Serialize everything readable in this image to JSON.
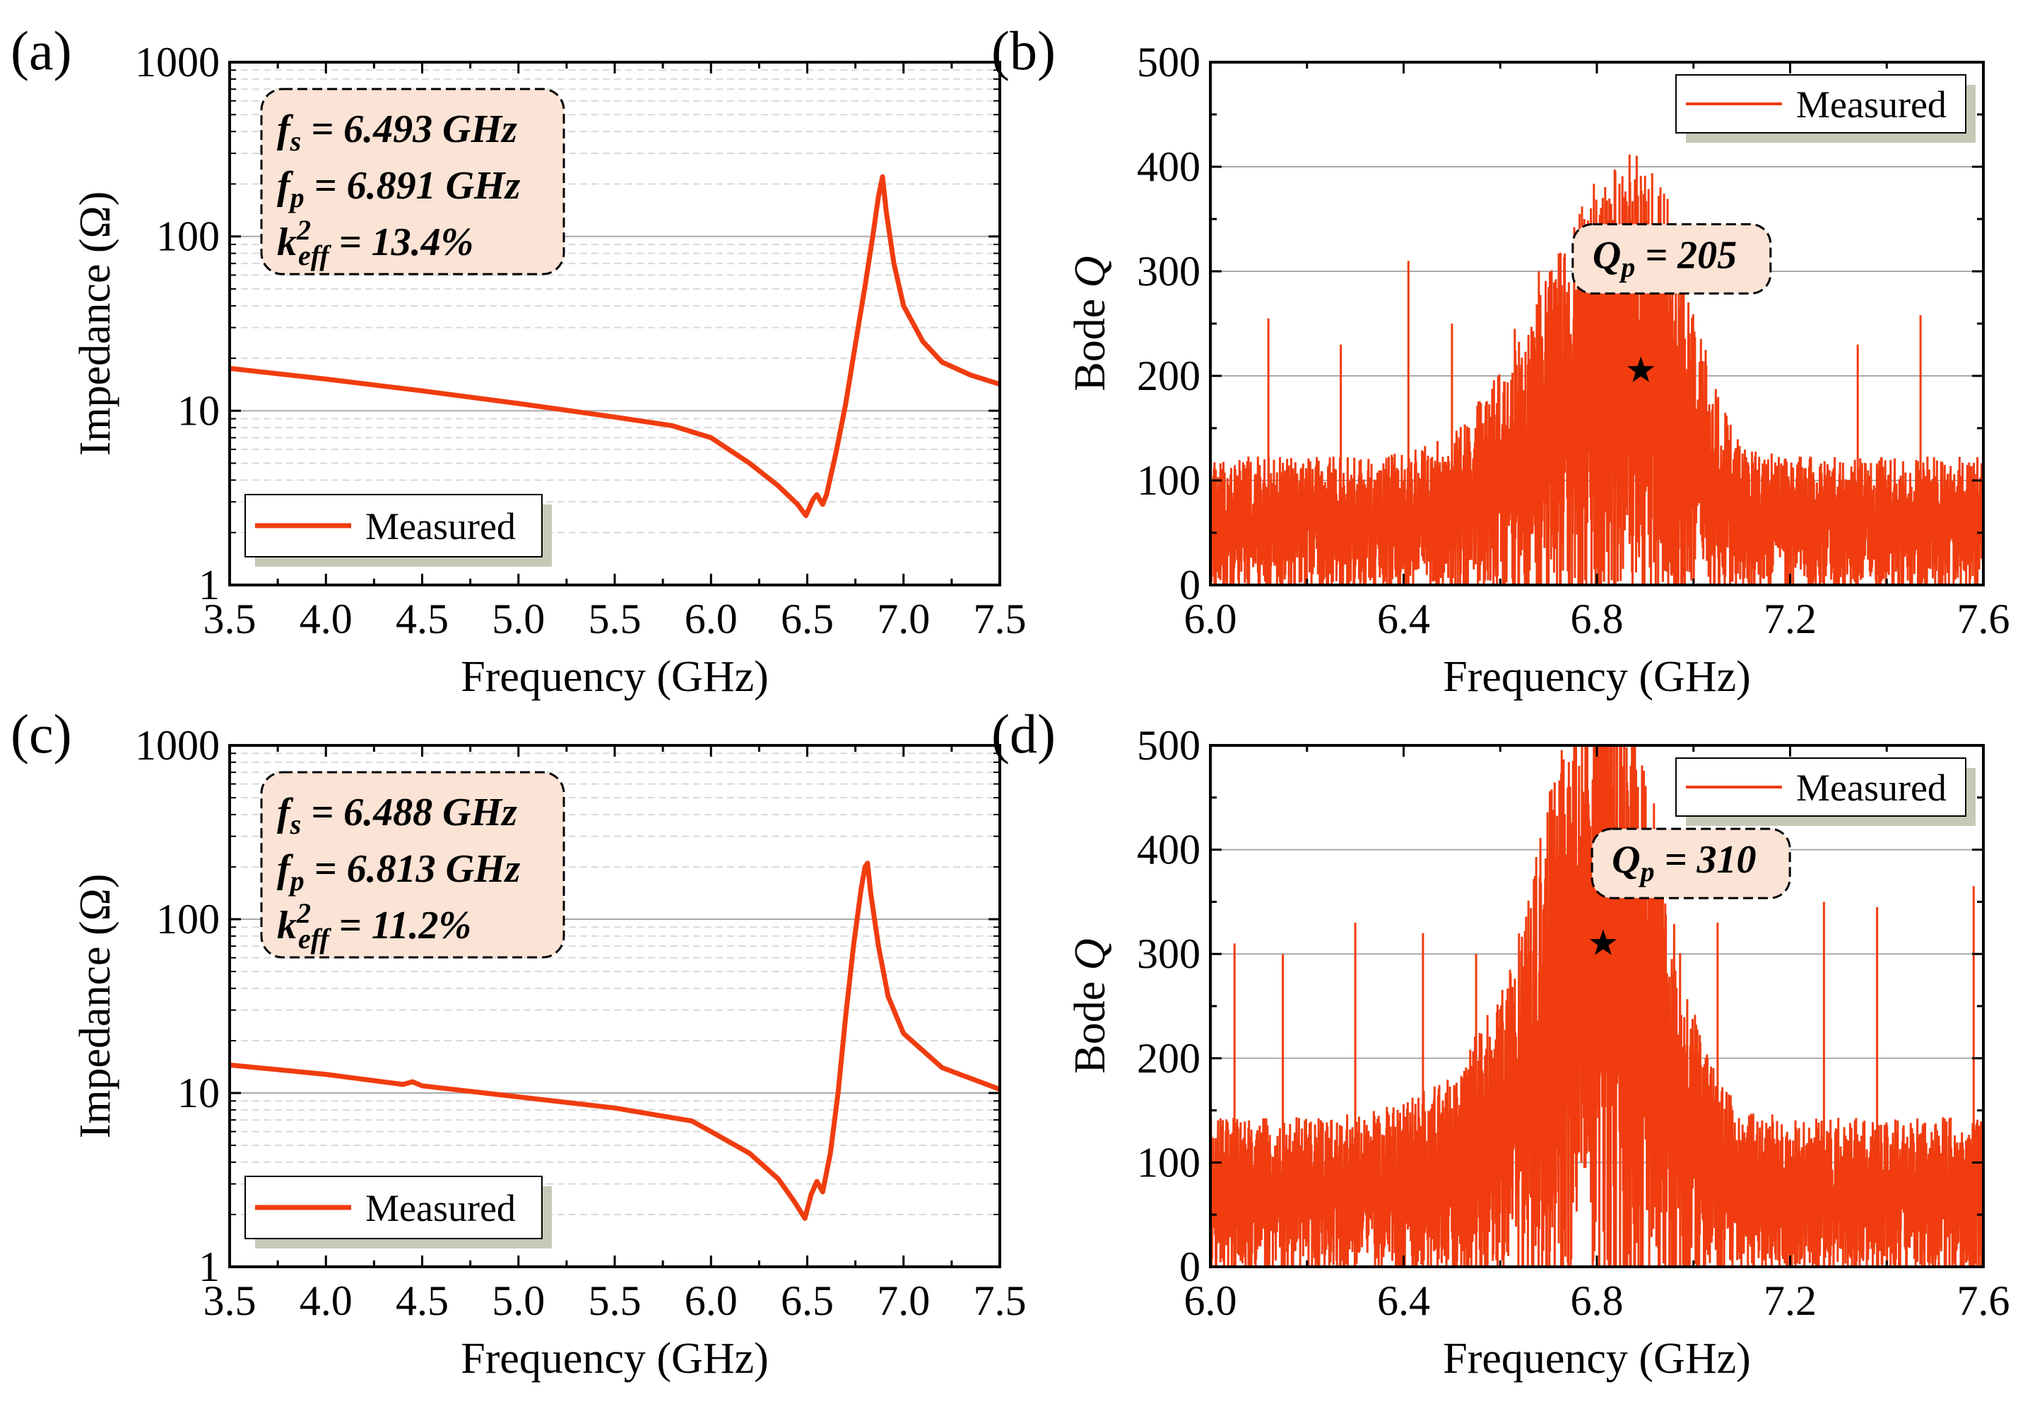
{
  "colors": {
    "series": "#f03c0f",
    "annotation_fill": "#fbe3d5",
    "grid_major": "#a9a9a9",
    "grid_minor": "#d9d9d9",
    "legend_shadow": "#c8c8b8"
  },
  "chart_data": [
    {
      "id": "a",
      "type": "line",
      "panel_label": "(a)",
      "xlabel": "Frequency (GHz)",
      "ylabel": "Impedance (Ω)",
      "xlim": [
        3.5,
        7.5
      ],
      "ylim": [
        1,
        1000
      ],
      "yscale": "log",
      "xticks": [
        "3.5",
        "4.0",
        "4.5",
        "5.0",
        "5.5",
        "6.0",
        "6.5",
        "7.0",
        "7.5"
      ],
      "yticks": [
        "1",
        "10",
        "100",
        "1000"
      ],
      "grid": true,
      "legend": {
        "position": "bottom-left",
        "entries": [
          "Measured"
        ]
      },
      "annotation": {
        "fs_prefix": "f",
        "fs_sub": "s",
        "fs_value": " = 6.493 GHz",
        "fp_prefix": "f",
        "fp_sub": "p",
        "fp_value": " = 6.891 GHz",
        "k_prefix": "k",
        "k_sup": "2",
        "k_sub": "eff",
        "k_value": " = 13.4%"
      },
      "series": [
        {
          "name": "Measured",
          "x": [
            3.5,
            4.0,
            4.5,
            5.0,
            5.5,
            5.8,
            6.0,
            6.2,
            6.35,
            6.45,
            6.493,
            6.53,
            6.55,
            6.58,
            6.6,
            6.65,
            6.7,
            6.75,
            6.8,
            6.84,
            6.87,
            6.891,
            6.91,
            6.95,
            7.0,
            7.1,
            7.2,
            7.35,
            7.5
          ],
          "y": [
            17.5,
            15.2,
            13.0,
            11.0,
            9.2,
            8.2,
            7.0,
            5.0,
            3.7,
            2.9,
            2.5,
            3.1,
            3.3,
            2.9,
            3.3,
            5.8,
            11.0,
            24.0,
            52.0,
            100.0,
            170.0,
            220.0,
            140.0,
            70.0,
            40.0,
            25.0,
            19.0,
            16.0,
            14.2
          ]
        }
      ]
    },
    {
      "id": "b",
      "type": "line",
      "panel_label": "(b)",
      "xlabel": "Frequency (GHz)",
      "ylabel_prefix": "Bode ",
      "ylabel_symbol": "Q",
      "xlim": [
        6.0,
        7.6
      ],
      "ylim": [
        0,
        500
      ],
      "xticks": [
        "6.0",
        "6.4",
        "6.8",
        "7.2",
        "7.6"
      ],
      "yticks": [
        "0",
        "100",
        "200",
        "300",
        "400",
        "500"
      ],
      "grid": true,
      "legend": {
        "position": "top-right",
        "entries": [
          "Measured"
        ]
      },
      "annotation": {
        "q_prefix": "Q",
        "q_sub": "p",
        "q_value": " = 205"
      },
      "peak_marker": {
        "x": 6.891,
        "y": 205
      },
      "series": [
        {
          "name": "Measured",
          "style": "noisy",
          "envelope_x": [
            6.0,
            6.1,
            6.2,
            6.3,
            6.4,
            6.5,
            6.6,
            6.7,
            6.75,
            6.8,
            6.85,
            6.891,
            6.95,
            7.0,
            7.05,
            7.1,
            7.2,
            7.3,
            7.4,
            7.5,
            7.6
          ],
          "envelope_y": [
            60,
            60,
            60,
            60,
            62,
            70,
            100,
            145,
            170,
            190,
            205,
            205,
            180,
            130,
            90,
            65,
            60,
            60,
            60,
            60,
            60
          ],
          "spikes": [
            [
              6.12,
              255
            ],
            [
              6.41,
              310
            ],
            [
              6.5,
              250
            ],
            [
              6.63,
              245
            ],
            [
              6.68,
              300
            ],
            [
              6.7,
              280
            ],
            [
              6.77,
              260
            ],
            [
              7.47,
              258
            ],
            [
              6.27,
              230
            ],
            [
              7.34,
              230
            ]
          ]
        }
      ]
    },
    {
      "id": "c",
      "type": "line",
      "panel_label": "(c)",
      "xlabel": "Frequency (GHz)",
      "ylabel": "Impedance (Ω)",
      "xlim": [
        3.5,
        7.5
      ],
      "ylim": [
        1,
        1000
      ],
      "yscale": "log",
      "xticks": [
        "3.5",
        "4.0",
        "4.5",
        "5.0",
        "5.5",
        "6.0",
        "6.5",
        "7.0",
        "7.5"
      ],
      "yticks": [
        "1",
        "10",
        "100",
        "1000"
      ],
      "grid": true,
      "legend": {
        "position": "bottom-left",
        "entries": [
          "Measured"
        ]
      },
      "annotation": {
        "fs_prefix": "f",
        "fs_sub": "s",
        "fs_value": " = 6.488 GHz",
        "fp_prefix": "f",
        "fp_sub": "p",
        "fp_value": " = 6.813 GHz",
        "k_prefix": "k",
        "k_sup": "2",
        "k_sub": "eff",
        "k_value": " = 11.2%"
      },
      "series": [
        {
          "name": "Measured",
          "x": [
            3.5,
            4.0,
            4.4,
            4.45,
            4.5,
            5.0,
            5.5,
            5.9,
            6.0,
            6.2,
            6.35,
            6.43,
            6.488,
            6.52,
            6.55,
            6.58,
            6.62,
            6.66,
            6.7,
            6.74,
            6.78,
            6.8,
            6.813,
            6.83,
            6.87,
            6.92,
            7.0,
            7.2,
            7.5
          ],
          "y": [
            14.5,
            12.8,
            11.2,
            11.6,
            11.0,
            9.5,
            8.2,
            6.9,
            6.0,
            4.5,
            3.2,
            2.4,
            1.9,
            2.6,
            3.1,
            2.7,
            4.5,
            10.0,
            28.0,
            70.0,
            150.0,
            200.0,
            210.0,
            140.0,
            70.0,
            36.0,
            22.0,
            14.0,
            10.5
          ]
        }
      ]
    },
    {
      "id": "d",
      "type": "line",
      "panel_label": "(d)",
      "xlabel": "Frequency (GHz)",
      "ylabel_prefix": "Bode ",
      "ylabel_symbol": "Q",
      "xlim": [
        6.0,
        7.6
      ],
      "ylim": [
        0,
        500
      ],
      "xticks": [
        "6.0",
        "6.4",
        "6.8",
        "7.2",
        "7.6"
      ],
      "yticks": [
        "0",
        "100",
        "200",
        "300",
        "400",
        "500"
      ],
      "grid": true,
      "legend": {
        "position": "top-right",
        "entries": [
          "Measured"
        ]
      },
      "annotation": {
        "q_prefix": "Q",
        "q_sub": "p",
        "q_value": " = 310"
      },
      "peak_marker": {
        "x": 6.813,
        "y": 310
      },
      "series": [
        {
          "name": "Measured",
          "style": "noisy",
          "envelope_x": [
            6.0,
            6.1,
            6.2,
            6.3,
            6.4,
            6.5,
            6.6,
            6.65,
            6.7,
            6.75,
            6.8,
            6.813,
            6.85,
            6.9,
            6.95,
            7.0,
            7.05,
            7.1,
            7.2,
            7.3,
            7.4,
            7.5,
            7.6
          ],
          "envelope_y": [
            70,
            70,
            70,
            72,
            78,
            90,
            130,
            170,
            220,
            270,
            305,
            310,
            290,
            240,
            180,
            120,
            90,
            75,
            70,
            70,
            70,
            70,
            70
          ],
          "spikes": [
            [
              6.05,
              310
            ],
            [
              6.15,
              300
            ],
            [
              6.3,
              330
            ],
            [
              6.44,
              320
            ],
            [
              6.55,
              300
            ],
            [
              6.93,
              370
            ],
            [
              7.05,
              330
            ],
            [
              7.27,
              350
            ],
            [
              7.38,
              345
            ],
            [
              7.58,
              365
            ],
            [
              6.73,
              350
            ]
          ]
        }
      ]
    }
  ]
}
